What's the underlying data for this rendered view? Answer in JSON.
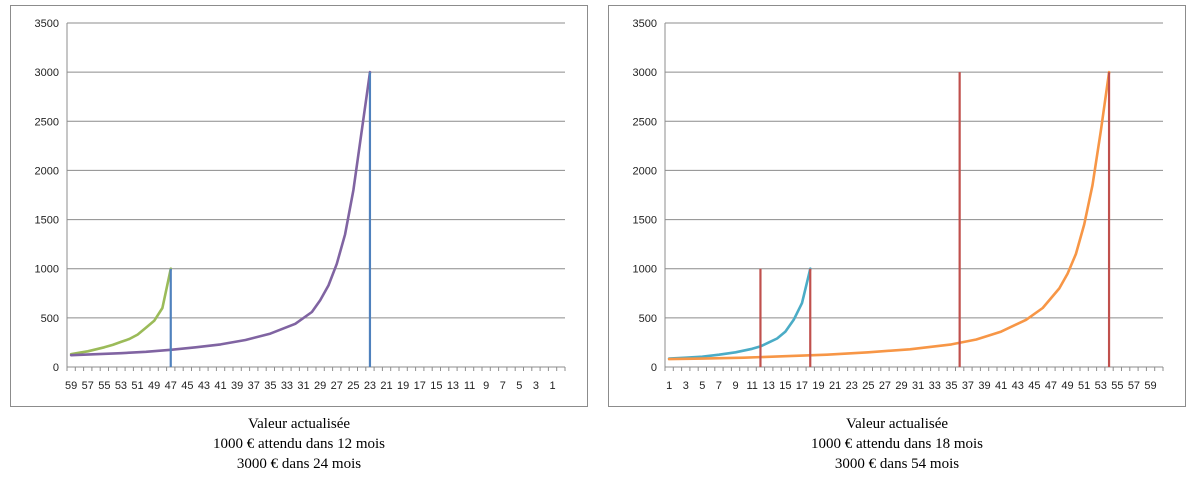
{
  "chart_data": [
    {
      "type": "line",
      "title": "",
      "xlabel": "",
      "ylabel": "",
      "ylim": [
        0,
        3500
      ],
      "yticks": [
        0,
        500,
        1000,
        1500,
        2000,
        2500,
        3000,
        3500
      ],
      "x_tick_labels": [
        "59",
        "57",
        "55",
        "53",
        "51",
        "49",
        "47",
        "45",
        "43",
        "41",
        "39",
        "37",
        "35",
        "33",
        "31",
        "29",
        "27",
        "25",
        "23",
        "21",
        "19",
        "17",
        "15",
        "13",
        "11",
        "9",
        "7",
        "5",
        "3",
        "1"
      ],
      "x_axis_order": "descending",
      "legend": "none",
      "grid": true,
      "series": [
        {
          "color": "#9bbb59",
          "x": [
            60,
            59,
            58,
            57,
            56,
            55,
            54,
            53,
            52,
            51,
            50,
            49,
            48
          ],
          "values": [
            130,
            145,
            160,
            180,
            200,
            225,
            255,
            285,
            330,
            400,
            470,
            600,
            1000
          ]
        },
        {
          "color": "#8064a2",
          "x": [
            60,
            57,
            54,
            51,
            48,
            45,
            42,
            39,
            36,
            33,
            31,
            30,
            29,
            28,
            27,
            26,
            25,
            24
          ],
          "values": [
            120,
            130,
            140,
            155,
            175,
            200,
            230,
            275,
            340,
            440,
            560,
            680,
            830,
            1050,
            1350,
            1800,
            2400,
            3000
          ]
        }
      ],
      "vertical_lines": [
        {
          "x": 48,
          "from": 0,
          "to": 1000,
          "color": "#4f81bd"
        },
        {
          "x": 24,
          "from": 0,
          "to": 3000,
          "color": "#4f81bd"
        }
      ],
      "caption": [
        "Valeur actualisée",
        "1000 € attendu dans 12 mois",
        "3000 € dans 24 mois"
      ]
    },
    {
      "type": "line",
      "title": "",
      "xlabel": "",
      "ylabel": "",
      "ylim": [
        0,
        3500
      ],
      "yticks": [
        0,
        500,
        1000,
        1500,
        2000,
        2500,
        3000,
        3500
      ],
      "x_tick_labels": [
        "1",
        "3",
        "5",
        "7",
        "9",
        "11",
        "13",
        "15",
        "17",
        "19",
        "21",
        "23",
        "25",
        "27",
        "29",
        "31",
        "33",
        "35",
        "37",
        "39",
        "41",
        "43",
        "45",
        "47",
        "49",
        "51",
        "53",
        "55",
        "57",
        "59"
      ],
      "x_axis_order": "ascending",
      "legend": "none",
      "grid": true,
      "series": [
        {
          "color": "#4bacc6",
          "x": [
            1,
            3,
            5,
            7,
            9,
            11,
            12,
            13,
            14,
            15,
            16,
            17,
            18
          ],
          "values": [
            85,
            95,
            105,
            125,
            150,
            185,
            210,
            250,
            290,
            360,
            480,
            650,
            1000
          ]
        },
        {
          "color": "#f79646",
          "x": [
            1,
            5,
            10,
            15,
            20,
            25,
            30,
            35,
            38,
            41,
            44,
            46,
            48,
            49,
            50,
            51,
            52,
            53,
            54
          ],
          "values": [
            80,
            85,
            95,
            110,
            125,
            150,
            180,
            230,
            280,
            360,
            480,
            600,
            800,
            950,
            1150,
            1450,
            1850,
            2400,
            3000
          ]
        }
      ],
      "vertical_lines": [
        {
          "x": 12,
          "from": 0,
          "to": 1000,
          "color": "#c0504d"
        },
        {
          "x": 18,
          "from": 0,
          "to": 1000,
          "color": "#c0504d"
        },
        {
          "x": 36,
          "from": 0,
          "to": 3000,
          "color": "#c0504d"
        },
        {
          "x": 54,
          "from": 0,
          "to": 3000,
          "color": "#c0504d"
        }
      ],
      "caption": [
        "Valeur actualisée",
        "1000 € attendu dans 18 mois",
        "3000 € dans 54 mois"
      ]
    }
  ]
}
